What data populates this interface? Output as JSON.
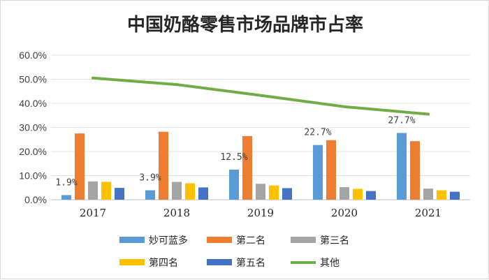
{
  "chart_data": {
    "type": "bar",
    "title": "中国奶酪零售市场品牌市占率",
    "categories": [
      "2017",
      "2018",
      "2019",
      "2020",
      "2021"
    ],
    "yticks": [
      "0.0%",
      "10.0%",
      "20.0%",
      "30.0%",
      "40.0%",
      "50.0%",
      "60.0%"
    ],
    "ylim": [
      0,
      60
    ],
    "grid": true,
    "legend_position": "bottom",
    "series": [
      {
        "name": "妙可蓝多",
        "kind": "bar",
        "color": "#5b9bd5",
        "values": [
          1.9,
          3.9,
          12.5,
          22.7,
          27.7
        ]
      },
      {
        "name": "第二名",
        "kind": "bar",
        "color": "#ed7d31",
        "values": [
          27.5,
          28.2,
          26.4,
          24.7,
          24.3
        ]
      },
      {
        "name": "第三名",
        "kind": "bar",
        "color": "#a5a5a5",
        "values": [
          7.6,
          7.4,
          6.6,
          5.2,
          4.6
        ]
      },
      {
        "name": "第四名",
        "kind": "bar",
        "color": "#ffc000",
        "values": [
          7.4,
          6.8,
          5.9,
          4.5,
          3.9
        ]
      },
      {
        "name": "第五名",
        "kind": "bar",
        "color": "#4472c4",
        "values": [
          4.9,
          5.1,
          4.8,
          3.6,
          3.3
        ]
      },
      {
        "name": "其他",
        "kind": "line",
        "color": "#70ad47",
        "values": [
          50.5,
          47.8,
          43.3,
          38.6,
          35.5
        ]
      }
    ],
    "data_labels": [
      {
        "series": "妙可蓝多",
        "index": 0,
        "text": "1.9%"
      },
      {
        "series": "妙可蓝多",
        "index": 1,
        "text": "3.9%"
      },
      {
        "series": "妙可蓝多",
        "index": 2,
        "text": "12.5%"
      },
      {
        "series": "妙可蓝多",
        "index": 3,
        "text": "22.7%"
      },
      {
        "series": "妙可蓝多",
        "index": 4,
        "text": "27.7%"
      }
    ]
  }
}
